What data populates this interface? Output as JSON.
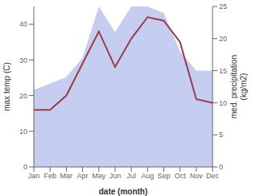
{
  "chart_data": {
    "type": "line",
    "categories": [
      "Jan",
      "Feb",
      "Mar",
      "Apr",
      "May",
      "Jun",
      "Jul",
      "Aug",
      "Sep",
      "Oct",
      "Nov",
      "Dec"
    ],
    "xlabel": "date (month)",
    "ylabel": "max temp (C)",
    "y2label": "med. precipitation\n(kg/m2)",
    "ylim": [
      0,
      45
    ],
    "yticks": [
      0,
      10,
      20,
      30,
      40
    ],
    "y2lim": [
      0,
      25
    ],
    "y2ticks": [
      0,
      5,
      10,
      15,
      20,
      25
    ],
    "grid": false,
    "series": [
      {
        "type": "area",
        "axis": "y2",
        "color": "#c5cef0",
        "values": [
          12,
          13,
          14,
          17,
          25,
          21,
          25,
          25,
          24,
          18,
          15,
          15
        ]
      },
      {
        "type": "line",
        "color": "#9b3a4a",
        "values": [
          16,
          16,
          20,
          29,
          38,
          28,
          36,
          42,
          41,
          35,
          19,
          18
        ]
      }
    ]
  }
}
